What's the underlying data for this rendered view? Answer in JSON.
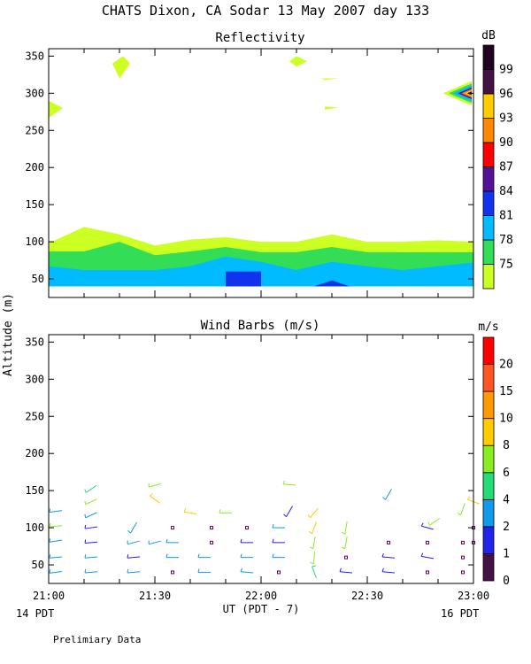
{
  "title": "CHATS Dixon, CA  Sodar  13 May 2007  day 133",
  "ylabel": "Altitude (m)",
  "xlabel": "UT  (PDT - 7)",
  "x_left_sub": "14 PDT",
  "x_right_sub": "16 PDT",
  "footnote": "Prelimiary Data",
  "x_ticks": [
    "21:00",
    "21:30",
    "22:00",
    "22:30",
    "23:00"
  ],
  "y_ticks": [
    "50",
    "100",
    "150",
    "200",
    "250",
    "300",
    "350"
  ],
  "chart_data": [
    {
      "type": "heatmap",
      "title": "Reflectivity",
      "xlim": [
        "21:00",
        "23:00"
      ],
      "ylim": [
        25,
        360
      ],
      "colorbar": {
        "unit": "dB",
        "labels": [
          "75",
          "78",
          "81",
          "84",
          "87",
          "90",
          "93",
          "96",
          "99"
        ],
        "colors": [
          "#ccff22",
          "#33dd55",
          "#00bbff",
          "#1133ee",
          "#551199",
          "#ff0000",
          "#ff8800",
          "#ffcc00",
          "#441144",
          "#220022"
        ]
      },
      "bands": [
        {
          "min_db": 75,
          "color": "#ccff22",
          "x": [
            "21:00",
            "21:10",
            "21:20",
            "21:30",
            "21:40",
            "21:50",
            "22:00",
            "22:10",
            "22:20",
            "22:30",
            "22:40",
            "22:50",
            "23:00"
          ],
          "top_alt": [
            98,
            120,
            110,
            95,
            103,
            106,
            100,
            100,
            110,
            100,
            100,
            102,
            100
          ]
        },
        {
          "min_db": 78,
          "color": "#33dd55",
          "x": [
            "21:00",
            "21:10",
            "21:20",
            "21:30",
            "21:40",
            "21:50",
            "22:00",
            "22:10",
            "22:20",
            "22:30",
            "22:40",
            "22:50",
            "23:00"
          ],
          "top_alt": [
            87,
            87,
            100,
            82,
            87,
            93,
            86,
            86,
            93,
            86,
            86,
            86,
            86
          ]
        },
        {
          "min_db": 81,
          "color": "#00bbff",
          "x": [
            "21:00",
            "21:10",
            "21:20",
            "21:30",
            "21:40",
            "21:50",
            "22:00",
            "22:10",
            "22:20",
            "22:30",
            "22:40",
            "22:50",
            "23:00"
          ],
          "top_alt": [
            67,
            62,
            62,
            62,
            67,
            80,
            73,
            62,
            73,
            67,
            62,
            67,
            72
          ]
        }
      ],
      "bottom_alt": 40,
      "patches": [
        {
          "min_db": 84,
          "shape": "box",
          "x": [
            "21:50",
            "22:00"
          ],
          "alt": [
            40,
            60
          ]
        },
        {
          "min_db": 84,
          "shape": "tri",
          "x": [
            "22:15",
            "22:20",
            "22:25"
          ],
          "alt": [
            40,
            48,
            40
          ]
        },
        {
          "min_db": 75,
          "shape": "poly",
          "x": [
            "21:00",
            "21:04",
            "21:00"
          ],
          "alt": [
            290,
            280,
            267
          ]
        },
        {
          "min_db": 75,
          "shape": "poly",
          "x": [
            "21:18",
            "21:21",
            "21:23",
            "21:20",
            "21:18"
          ],
          "alt": [
            340,
            350,
            340,
            320,
            340
          ]
        },
        {
          "min_db": 75,
          "shape": "poly",
          "x": [
            "22:08",
            "22:10",
            "22:13",
            "22:10"
          ],
          "alt": [
            343,
            350,
            343,
            336
          ]
        },
        {
          "min_db": 75,
          "shape": "poly",
          "x": [
            "22:17",
            "22:22",
            "22:18"
          ],
          "alt": [
            320,
            320,
            318
          ]
        },
        {
          "min_db": 75,
          "shape": "poly",
          "x": [
            "22:18",
            "22:22",
            "22:18"
          ],
          "alt": [
            282,
            281,
            278
          ]
        },
        {
          "min_db": 75,
          "shape": "poly",
          "x": [
            "22:52",
            "22:59",
            "22:59"
          ],
          "alt": [
            300,
            290,
            310
          ]
        }
      ]
    },
    {
      "type": "scatter",
      "title": "Wind Barbs (m/s)",
      "xlim": [
        "21:00",
        "23:00"
      ],
      "ylim": [
        25,
        360
      ],
      "colorbar": {
        "unit": "m/s",
        "labels": [
          "0",
          "1",
          "2",
          "4",
          "6",
          "8",
          "10",
          "15",
          "20"
        ],
        "colors": [
          "#441144",
          "#2222ee",
          "#1199ee",
          "#22dd77",
          "#88ee22",
          "#ffcc00",
          "#ff9900",
          "#ff5522",
          "#ff0000"
        ]
      },
      "barbs": [
        {
          "t": "21:02",
          "alt": 40,
          "speed": 2.5,
          "angle": -8
        },
        {
          "t": "21:02",
          "alt": 60,
          "speed": 2.5,
          "angle": -5
        },
        {
          "t": "21:02",
          "alt": 82,
          "speed": 2.5,
          "angle": -10
        },
        {
          "t": "21:02",
          "alt": 102,
          "speed": 6,
          "angle": -5
        },
        {
          "t": "21:02",
          "alt": 122,
          "speed": 2.5,
          "angle": -8
        },
        {
          "t": "21:12",
          "alt": 40,
          "speed": 2.5,
          "angle": -5
        },
        {
          "t": "21:12",
          "alt": 60,
          "speed": 2.5,
          "angle": -5
        },
        {
          "t": "21:12",
          "alt": 80,
          "speed": 1.5,
          "angle": -5
        },
        {
          "t": "21:12",
          "alt": 100,
          "speed": 1.5,
          "angle": -8
        },
        {
          "t": "21:12",
          "alt": 117,
          "speed": 2.5,
          "angle": -25
        },
        {
          "t": "21:12",
          "alt": 135,
          "speed": 6,
          "angle": -25
        },
        {
          "t": "21:12",
          "alt": 152,
          "speed": 4,
          "angle": -35
        },
        {
          "t": "21:24",
          "alt": 40,
          "speed": 2.5,
          "angle": -5
        },
        {
          "t": "21:24",
          "alt": 60,
          "speed": 1.5,
          "angle": -5
        },
        {
          "t": "21:24",
          "alt": 80,
          "speed": 2.5,
          "angle": -15
        },
        {
          "t": "21:24",
          "alt": 100,
          "speed": 2.5,
          "angle": -60
        },
        {
          "t": "21:30",
          "alt": 80,
          "speed": 2.5,
          "angle": -15
        },
        {
          "t": "21:30",
          "alt": 138,
          "speed": 8,
          "angle": 35
        },
        {
          "t": "21:30",
          "alt": 157,
          "speed": 6,
          "angle": -15
        },
        {
          "t": "21:35",
          "alt": 40,
          "speed": 0,
          "angle": 0
        },
        {
          "t": "21:35",
          "alt": 60,
          "speed": 2.5,
          "angle": 0
        },
        {
          "t": "21:35",
          "alt": 80,
          "speed": 2.5,
          "angle": 0
        },
        {
          "t": "21:35",
          "alt": 100,
          "speed": 0,
          "angle": 0
        },
        {
          "t": "21:40",
          "alt": 120,
          "speed": 8,
          "angle": 10
        },
        {
          "t": "21:44",
          "alt": 40,
          "speed": 2.5,
          "angle": 0
        },
        {
          "t": "21:44",
          "alt": 60,
          "speed": 2.5,
          "angle": 0
        },
        {
          "t": "21:46",
          "alt": 80,
          "speed": 0,
          "angle": 0
        },
        {
          "t": "21:46",
          "alt": 100,
          "speed": 0,
          "angle": 0
        },
        {
          "t": "21:50",
          "alt": 120,
          "speed": 6,
          "angle": 0
        },
        {
          "t": "21:56",
          "alt": 40,
          "speed": 2.5,
          "angle": 5
        },
        {
          "t": "21:56",
          "alt": 60,
          "speed": 2.5,
          "angle": 0
        },
        {
          "t": "21:56",
          "alt": 80,
          "speed": 1.5,
          "angle": 0
        },
        {
          "t": "21:56",
          "alt": 100,
          "speed": 0,
          "angle": 0
        },
        {
          "t": "22:05",
          "alt": 40,
          "speed": 0,
          "angle": 0
        },
        {
          "t": "22:05",
          "alt": 60,
          "speed": 2.5,
          "angle": 0
        },
        {
          "t": "22:05",
          "alt": 80,
          "speed": 1.5,
          "angle": 0
        },
        {
          "t": "22:05",
          "alt": 100,
          "speed": 2.5,
          "angle": 0
        },
        {
          "t": "22:08",
          "alt": 122,
          "speed": 1.5,
          "angle": -60
        },
        {
          "t": "22:08",
          "alt": 158,
          "speed": 6,
          "angle": 5
        },
        {
          "t": "22:15",
          "alt": 40,
          "speed": 4,
          "angle": 70
        },
        {
          "t": "22:15",
          "alt": 60,
          "speed": 6,
          "angle": -85
        },
        {
          "t": "22:15",
          "alt": 80,
          "speed": 6,
          "angle": -80
        },
        {
          "t": "22:15",
          "alt": 100,
          "speed": 8,
          "angle": -70
        },
        {
          "t": "22:15",
          "alt": 120,
          "speed": 8,
          "angle": -50
        },
        {
          "t": "22:24",
          "alt": 40,
          "speed": 1.5,
          "angle": 5
        },
        {
          "t": "22:24",
          "alt": 60,
          "speed": 0,
          "angle": 0
        },
        {
          "t": "22:24",
          "alt": 80,
          "speed": 6,
          "angle": -80
        },
        {
          "t": "22:24",
          "alt": 100,
          "speed": 6,
          "angle": -80
        },
        {
          "t": "22:36",
          "alt": 40,
          "speed": 1.5,
          "angle": 5
        },
        {
          "t": "22:36",
          "alt": 60,
          "speed": 1.5,
          "angle": 5
        },
        {
          "t": "22:36",
          "alt": 80,
          "speed": 0,
          "angle": 0
        },
        {
          "t": "22:36",
          "alt": 145,
          "speed": 2.5,
          "angle": -60
        },
        {
          "t": "22:47",
          "alt": 40,
          "speed": 0,
          "angle": 0
        },
        {
          "t": "22:47",
          "alt": 60,
          "speed": 1.5,
          "angle": 10
        },
        {
          "t": "22:47",
          "alt": 80,
          "speed": 0,
          "angle": 0
        },
        {
          "t": "22:47",
          "alt": 100,
          "speed": 1.5,
          "angle": 15
        },
        {
          "t": "22:49",
          "alt": 108,
          "speed": 6,
          "angle": -35
        },
        {
          "t": "22:57",
          "alt": 40,
          "speed": 0,
          "angle": 0
        },
        {
          "t": "22:57",
          "alt": 60,
          "speed": 0,
          "angle": 0
        },
        {
          "t": "22:57",
          "alt": 80,
          "speed": 0,
          "angle": 0
        },
        {
          "t": "22:57",
          "alt": 125,
          "speed": 6,
          "angle": -70
        },
        {
          "t": "23:00",
          "alt": 80,
          "speed": 0,
          "angle": 0
        },
        {
          "t": "23:00",
          "alt": 100,
          "speed": 0,
          "angle": 0
        },
        {
          "t": "23:00",
          "alt": 135,
          "speed": 8,
          "angle": 20
        }
      ]
    }
  ]
}
